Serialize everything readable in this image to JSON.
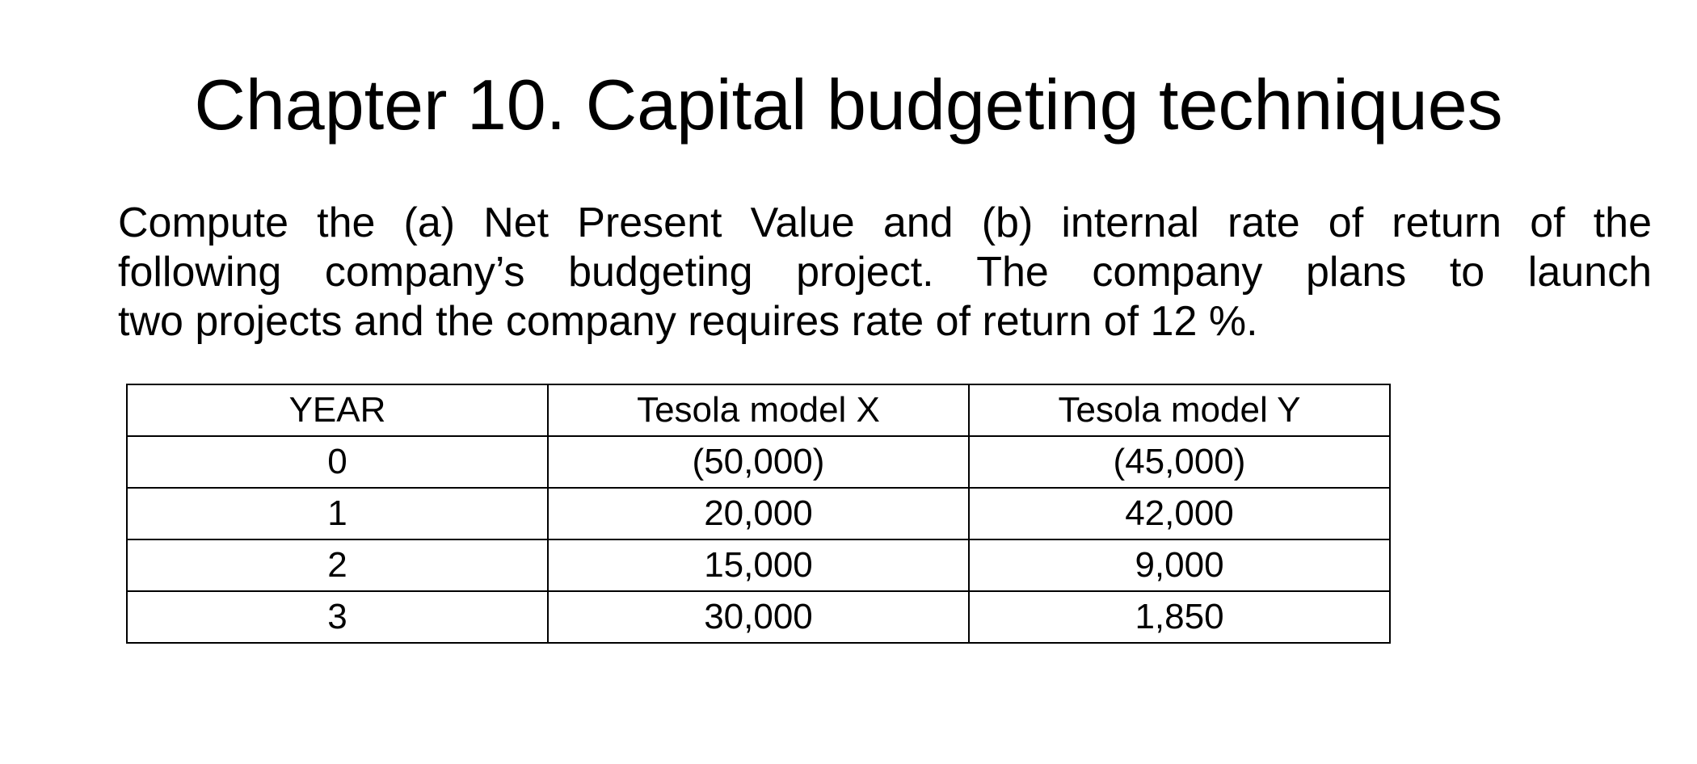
{
  "slide": {
    "title": "Chapter 10. Capital budgeting techniques",
    "paragraph_lines": [
      "Compute the (a) Net Present Value and (b) internal rate of return of the",
      "following company’s budgeting project. The company plans to launch",
      "two projects and the company requires rate of return of 12 %."
    ]
  },
  "table": {
    "header": [
      "YEAR",
      "Tesola model X",
      "Tesola model Y"
    ],
    "rows": [
      [
        "0",
        "(50,000)",
        "(45,000)"
      ],
      [
        "1",
        "20,000",
        "42,000"
      ],
      [
        "2",
        "15,000",
        "9,000"
      ],
      [
        "3",
        "30,000",
        "1,850"
      ]
    ]
  }
}
